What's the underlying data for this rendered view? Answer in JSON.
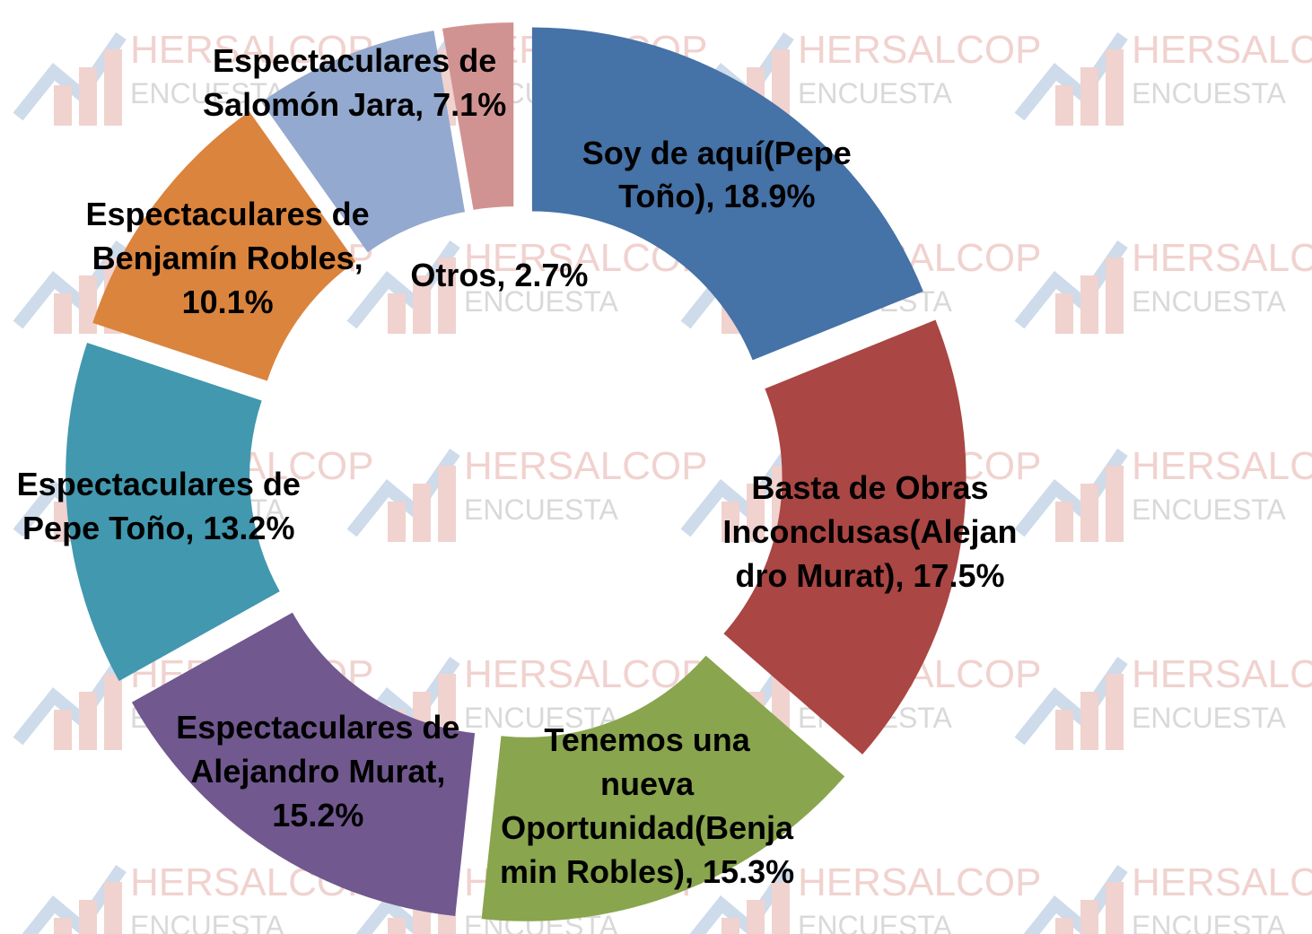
{
  "chart_data": {
    "type": "doughnut",
    "values": [
      18.9,
      17.5,
      15.3,
      15.2,
      13.2,
      10.1,
      7.1,
      2.7
    ],
    "value_labels": [
      "Soy de aquí(Pepe Toño), 18.9%",
      "Basta de Obras Inconclusas(Alejandro Murat), 17.5%",
      "Tenemos una nueva Oportunidad(Benjamin Robles), 15.3%",
      "Espectaculares de Alejandro Murat, 15.2%",
      "Espectaculares de Pepe Toño, 13.2%",
      "Espectaculares de Benjamín Robles, 10.1%",
      "Espectaculares de Salomón Jara, 7.1%",
      "Otros, 2.7%"
    ],
    "colors": [
      "#4572A7",
      "#AA4643",
      "#89A54E",
      "#71588F",
      "#4198AF",
      "#DB843D",
      "#93A9CF",
      "#D19392"
    ]
  },
  "watermark": {
    "title": "HERSALCOP",
    "subtitle": "ENCUESTA"
  }
}
